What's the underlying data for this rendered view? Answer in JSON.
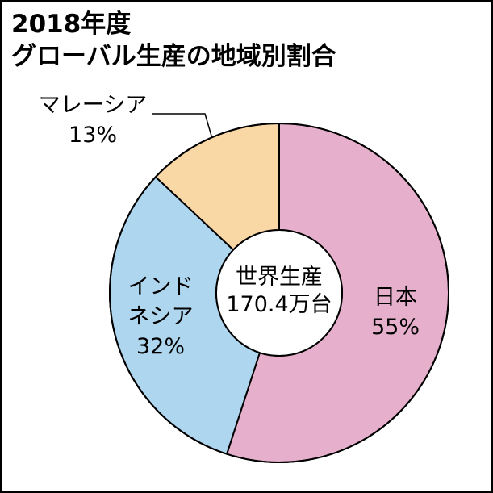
{
  "chart_data": {
    "type": "pie",
    "title_line1": "2018年度",
    "title_line2": "グローバル生産の地域別割合",
    "center_text": [
      "世界生産",
      "170.4万台"
    ],
    "slices": [
      {
        "label_lines": [
          "日本"
        ],
        "value": 55,
        "value_text": "55%",
        "color": "#e6b0cc"
      },
      {
        "label_lines": [
          "インド",
          "ネシア"
        ],
        "value": 32,
        "value_text": "32%",
        "color": "#afd6ef"
      },
      {
        "label_lines": [
          "マレーシア"
        ],
        "value": 13,
        "value_text": "13%",
        "color": "#f9d8a6"
      }
    ]
  }
}
